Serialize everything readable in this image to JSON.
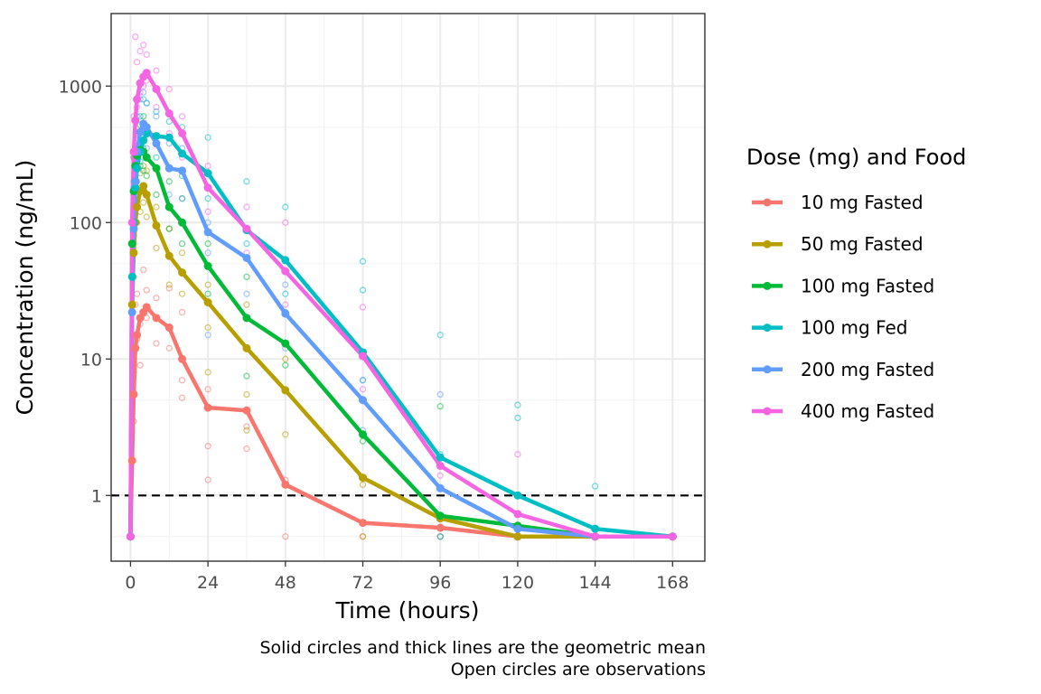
{
  "chart_data": {
    "type": "line",
    "title": "",
    "xlabel": "Time (hours)",
    "ylabel": "Concentration (ng/mL)",
    "xlim": [
      -6,
      178
    ],
    "ylim": [
      0.33,
      3400
    ],
    "y_scale": "log10",
    "x_ticks": [
      0,
      24,
      48,
      72,
      96,
      120,
      144,
      168
    ],
    "x_tick_labels": [
      "0",
      "24",
      "48",
      "72",
      "96",
      "120",
      "144",
      "168"
    ],
    "y_ticks": [
      1,
      10,
      100,
      1000
    ],
    "y_tick_labels": [
      "1",
      "10",
      "100",
      "1000"
    ],
    "grid": true,
    "reference_line": {
      "y": 1,
      "style": "dashed"
    },
    "legend": {
      "title": "Dose (mg) and Food",
      "position": "right"
    },
    "caption": [
      "Solid circles and thick lines are the geometric mean",
      "Open circles are observations"
    ],
    "series": [
      {
        "name": "10 mg Fasted",
        "color": "#F8766D",
        "x": [
          0,
          0.5,
          1,
          1.5,
          2,
          3,
          4,
          5,
          8,
          12,
          16,
          24,
          36,
          48,
          72,
          96,
          120,
          144,
          168
        ],
        "mean": [
          0.5,
          1.8,
          5.5,
          12,
          15,
          20,
          22,
          24,
          20,
          17,
          10,
          4.4,
          4.2,
          1.2,
          0.63,
          0.58,
          0.5,
          0.5,
          0.5
        ],
        "obs": [
          [
            0,
            0.5
          ],
          [
            0.5,
            1.8
          ],
          [
            1,
            3.5
          ],
          [
            1,
            8
          ],
          [
            1.5,
            12
          ],
          [
            1.5,
            25
          ],
          [
            2,
            14
          ],
          [
            2,
            30
          ],
          [
            3,
            18
          ],
          [
            3,
            9
          ],
          [
            4,
            22
          ],
          [
            4,
            45
          ],
          [
            5,
            20
          ],
          [
            5,
            32
          ],
          [
            8,
            13
          ],
          [
            8,
            28
          ],
          [
            12,
            12
          ],
          [
            12,
            33
          ],
          [
            16,
            5.2
          ],
          [
            16,
            7
          ],
          [
            16,
            22
          ],
          [
            24,
            2.3
          ],
          [
            24,
            1.3
          ],
          [
            24,
            6
          ],
          [
            36,
            2.2
          ],
          [
            36,
            3.2
          ],
          [
            48,
            0.5
          ],
          [
            48,
            1.3
          ],
          [
            72,
            0.5
          ],
          [
            120,
            0.5
          ]
        ]
      },
      {
        "name": "50 mg Fasted",
        "color": "#B79F00",
        "x": [
          0,
          0.5,
          1,
          1.5,
          2,
          3,
          4,
          5,
          8,
          12,
          16,
          24,
          36,
          48,
          72,
          96,
          120,
          144,
          168
        ],
        "mean": [
          0.5,
          25,
          60,
          100,
          130,
          170,
          185,
          160,
          95,
          57,
          43,
          26,
          12,
          5.9,
          1.35,
          0.68,
          0.5,
          0.5,
          0.5
        ],
        "obs": [
          [
            0,
            0.5
          ],
          [
            0.5,
            25
          ],
          [
            1,
            40
          ],
          [
            1,
            80
          ],
          [
            2,
            100
          ],
          [
            2,
            160
          ],
          [
            3,
            120
          ],
          [
            3,
            230
          ],
          [
            4,
            140
          ],
          [
            4,
            260
          ],
          [
            5,
            110
          ],
          [
            5,
            240
          ],
          [
            8,
            65
          ],
          [
            8,
            130
          ],
          [
            12,
            35
          ],
          [
            12,
            90
          ],
          [
            16,
            30
          ],
          [
            16,
            60
          ],
          [
            24,
            8
          ],
          [
            24,
            17
          ],
          [
            24,
            35
          ],
          [
            36,
            5.5
          ],
          [
            36,
            3
          ],
          [
            36,
            25
          ],
          [
            48,
            2.8
          ],
          [
            48,
            10
          ],
          [
            72,
            1.2
          ],
          [
            72,
            0.5
          ],
          [
            96,
            0.5
          ]
        ]
      },
      {
        "name": "100 mg Fasted",
        "color": "#00BA38",
        "x": [
          0,
          0.5,
          1,
          1.5,
          2,
          3,
          4,
          5,
          8,
          12,
          16,
          24,
          36,
          48,
          72,
          96,
          120,
          144,
          168
        ],
        "mean": [
          0.5,
          70,
          170,
          260,
          310,
          340,
          330,
          300,
          250,
          130,
          100,
          48,
          20,
          13,
          2.8,
          0.71,
          0.6,
          0.5,
          0.5
        ],
        "obs": [
          [
            0,
            0.5
          ],
          [
            0.5,
            70
          ],
          [
            1,
            160
          ],
          [
            1,
            300
          ],
          [
            2,
            250
          ],
          [
            2,
            450
          ],
          [
            3,
            260
          ],
          [
            3,
            520
          ],
          [
            4,
            240
          ],
          [
            4,
            600
          ],
          [
            5,
            220
          ],
          [
            5,
            500
          ],
          [
            8,
            160
          ],
          [
            8,
            380
          ],
          [
            12,
            90
          ],
          [
            12,
            200
          ],
          [
            16,
            70
          ],
          [
            16,
            150
          ],
          [
            24,
            30
          ],
          [
            24,
            70
          ],
          [
            36,
            7.5
          ],
          [
            36,
            40
          ],
          [
            48,
            9
          ],
          [
            48,
            22
          ],
          [
            72,
            2.5
          ],
          [
            72,
            5
          ],
          [
            96,
            4.5
          ],
          [
            96,
            0.5
          ]
        ]
      },
      {
        "name": "100 mg Fed",
        "color": "#00BFC4",
        "x": [
          0,
          0.5,
          1,
          1.5,
          2,
          3,
          4,
          5,
          8,
          12,
          16,
          24,
          36,
          48,
          72,
          96,
          120,
          144,
          168
        ],
        "mean": [
          0.5,
          40,
          100,
          180,
          250,
          330,
          400,
          450,
          430,
          420,
          320,
          230,
          88,
          53,
          11.2,
          1.9,
          1.0,
          0.57,
          0.5
        ],
        "obs": [
          [
            0,
            0.5
          ],
          [
            0.5,
            40
          ],
          [
            1,
            90
          ],
          [
            1,
            200
          ],
          [
            2,
            200
          ],
          [
            2,
            400
          ],
          [
            3,
            280
          ],
          [
            3,
            600
          ],
          [
            4,
            350
          ],
          [
            4,
            800
          ],
          [
            5,
            300
          ],
          [
            5,
            750
          ],
          [
            8,
            300
          ],
          [
            8,
            650
          ],
          [
            12,
            250
          ],
          [
            12,
            550
          ],
          [
            16,
            220
          ],
          [
            16,
            500
          ],
          [
            24,
            150
          ],
          [
            24,
            420
          ],
          [
            36,
            70
          ],
          [
            36,
            200
          ],
          [
            48,
            30
          ],
          [
            48,
            130
          ],
          [
            72,
            7
          ],
          [
            72,
            32
          ],
          [
            72,
            52
          ],
          [
            96,
            2
          ],
          [
            96,
            15
          ],
          [
            120,
            3.7
          ],
          [
            120,
            4.6
          ],
          [
            144,
            1.17
          ]
        ]
      },
      {
        "name": "200 mg Fasted",
        "color": "#619CFF",
        "x": [
          0,
          0.5,
          1,
          1.5,
          2,
          3,
          4,
          5,
          8,
          12,
          16,
          24,
          36,
          48,
          72,
          96,
          120,
          144,
          168
        ],
        "mean": [
          0.5,
          22,
          90,
          200,
          330,
          460,
          530,
          500,
          380,
          250,
          240,
          85,
          55,
          21.5,
          5,
          1.13,
          0.57,
          0.5,
          0.5
        ],
        "obs": [
          [
            0,
            0.5
          ],
          [
            0.5,
            22
          ],
          [
            1,
            80
          ],
          [
            1,
            180
          ],
          [
            2,
            300
          ],
          [
            2,
            600
          ],
          [
            3,
            350
          ],
          [
            3,
            800
          ],
          [
            4,
            400
          ],
          [
            4,
            900
          ],
          [
            5,
            350
          ],
          [
            5,
            750
          ],
          [
            8,
            250
          ],
          [
            8,
            600
          ],
          [
            12,
            160
          ],
          [
            12,
            380
          ],
          [
            16,
            150
          ],
          [
            16,
            350
          ],
          [
            24,
            15
          ],
          [
            24,
            60
          ],
          [
            24,
            100
          ],
          [
            36,
            30
          ],
          [
            36,
            90
          ],
          [
            48,
            12
          ],
          [
            48,
            35
          ],
          [
            72,
            3
          ],
          [
            72,
            7
          ],
          [
            96,
            0.5
          ],
          [
            96,
            5.5
          ]
        ]
      },
      {
        "name": "400 mg Fasted",
        "color": "#F564E3",
        "x": [
          0,
          0.5,
          1,
          1.5,
          2,
          3,
          4,
          5,
          8,
          12,
          16,
          24,
          36,
          48,
          72,
          96,
          120,
          144,
          168
        ],
        "mean": [
          0.5,
          100,
          330,
          560,
          800,
          1050,
          1170,
          1250,
          950,
          630,
          450,
          180,
          90,
          44,
          10.5,
          1.65,
          0.73,
          0.5,
          0.5
        ],
        "obs": [
          [
            0,
            0.5
          ],
          [
            0.5,
            100
          ],
          [
            1,
            300
          ],
          [
            1,
            600
          ],
          [
            1.5,
            2300
          ],
          [
            2,
            700
          ],
          [
            2,
            1500
          ],
          [
            3,
            900
          ],
          [
            3,
            1800
          ],
          [
            4,
            1000
          ],
          [
            4,
            2000
          ],
          [
            5,
            1100
          ],
          [
            5,
            1700
          ],
          [
            8,
            700
          ],
          [
            8,
            1300
          ],
          [
            12,
            450
          ],
          [
            12,
            950
          ],
          [
            16,
            300
          ],
          [
            16,
            600
          ],
          [
            24,
            120
          ],
          [
            24,
            260
          ],
          [
            36,
            60
          ],
          [
            36,
            130
          ],
          [
            48,
            25
          ],
          [
            48,
            100
          ],
          [
            72,
            6
          ],
          [
            72,
            24
          ],
          [
            96,
            1.4
          ],
          [
            120,
            2
          ],
          [
            144,
            0.5
          ]
        ]
      }
    ]
  }
}
